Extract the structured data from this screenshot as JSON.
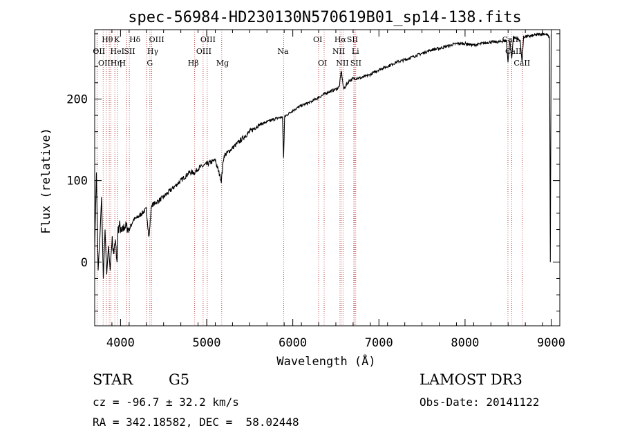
{
  "colors": {
    "spectrum": "#000000",
    "lines": "#b22222",
    "background": "#ffffff"
  },
  "chart_data": {
    "type": "line",
    "title": "spec-56984-HD230130N570619B01_sp14-138.fits",
    "xlabel": "Wavelength (Å)",
    "ylabel": "Flux (relative)",
    "xlim": [
      3700,
      9100
    ],
    "ylim": [
      -78,
      285
    ],
    "xticks": [
      4000,
      5000,
      6000,
      7000,
      8000,
      9000
    ],
    "yticks": [
      0,
      100,
      200
    ],
    "series": [
      {
        "name": "flux",
        "x": [
          3700,
          3720,
          3740,
          3760,
          3780,
          3800,
          3820,
          3840,
          3860,
          3880,
          3900,
          3920,
          3940,
          3960,
          3970,
          3990,
          4010,
          4050,
          4100,
          4150,
          4200,
          4250,
          4300,
          4330,
          4360,
          4400,
          4500,
          4600,
          4700,
          4800,
          4860,
          4900,
          5000,
          5100,
          5170,
          5200,
          5300,
          5400,
          5500,
          5600,
          5700,
          5800,
          5880,
          5893,
          5905,
          5950,
          6000,
          6100,
          6200,
          6300,
          6400,
          6500,
          6540,
          6563,
          6590,
          6650,
          6700,
          6800,
          6900,
          7000,
          7100,
          7200,
          7300,
          7400,
          7500,
          7600,
          7700,
          7800,
          7900,
          8000,
          8100,
          8200,
          8300,
          8400,
          8480,
          8498,
          8520,
          8542,
          8560,
          8600,
          8640,
          8662,
          8680,
          8750,
          8800,
          8850,
          8900,
          8950,
          8980,
          8990,
          9000
        ],
        "values": [
          15,
          110,
          -10,
          30,
          80,
          -20,
          40,
          -15,
          20,
          -10,
          30,
          10,
          25,
          0,
          40,
          45,
          35,
          45,
          40,
          52,
          55,
          60,
          65,
          30,
          70,
          72,
          80,
          90,
          100,
          110,
          110,
          115,
          120,
          125,
          100,
          130,
          140,
          150,
          160,
          168,
          172,
          176,
          178,
          128,
          178,
          182,
          186,
          192,
          196,
          202,
          208,
          212,
          215,
          235,
          212,
          222,
          225,
          226,
          230,
          236,
          240,
          245,
          248,
          252,
          256,
          260,
          262,
          265,
          268,
          268,
          266,
          268,
          270,
          270,
          272,
          245,
          272,
          250,
          276,
          274,
          272,
          245,
          276,
          277,
          278,
          279,
          280,
          279,
          275,
          0,
          280
        ]
      }
    ],
    "lines": [
      {
        "label": "Hθ",
        "wave": 3798,
        "row": 0,
        "dx": -2
      },
      {
        "label": "K",
        "wave": 3934,
        "row": 0,
        "dx": -1
      },
      {
        "label": "Hδ",
        "wave": 4102,
        "row": 0,
        "dx": 0
      },
      {
        "label": "OII",
        "wave": 3727,
        "row": 1,
        "dx": -6
      },
      {
        "label": "HeI",
        "wave": 3889,
        "row": 1,
        "dx": -1
      },
      {
        "label": "SII",
        "wave": 4072,
        "row": 1,
        "dx": -4
      },
      {
        "label": "OIII",
        "wave": 3869,
        "row": 2,
        "dx": -16
      },
      {
        "label": "Hη",
        "wave": 3835,
        "row": 2,
        "dx": 6
      },
      {
        "label": "H",
        "wave": 3969,
        "row": 2,
        "dx": 2
      },
      {
        "label": "OIII",
        "wave": 4363,
        "row": 0,
        "dx": -4
      },
      {
        "label": "Hγ",
        "wave": 4341,
        "row": 1,
        "dx": -4
      },
      {
        "label": "G",
        "wave": 4305,
        "row": 2,
        "dx": 0
      },
      {
        "label": "OIII",
        "wave": 5007,
        "row": 0,
        "dx": -10
      },
      {
        "label": "OIII",
        "wave": 4959,
        "row": 1,
        "dx": -10
      },
      {
        "label": "Hβ",
        "wave": 4861,
        "row": 2,
        "dx": -10
      },
      {
        "label": "Mg",
        "wave": 5175,
        "row": 2,
        "dx": -8
      },
      {
        "label": "Na",
        "wave": 5893,
        "row": 1,
        "dx": -9
      },
      {
        "label": "OI",
        "wave": 6300,
        "row": 0,
        "dx": -8
      },
      {
        "label": "OI",
        "wave": 6364,
        "row": 2,
        "dx": -9
      },
      {
        "label": "Hα",
        "wave": 6563,
        "row": 0,
        "dx": -10
      },
      {
        "label": "SII",
        "wave": 6716,
        "row": 0,
        "dx": -11
      },
      {
        "label": "NII",
        "wave": 6548,
        "row": 1,
        "dx": -11
      },
      {
        "label": "Li",
        "wave": 6708,
        "row": 1,
        "dx": -3
      },
      {
        "label": "NII",
        "wave": 6583,
        "row": 2,
        "dx": -10
      },
      {
        "label": "SII",
        "wave": 6731,
        "row": 2,
        "dx": -8
      },
      {
        "label": "CaII",
        "wave": 8542,
        "row": 0,
        "dx": -14
      },
      {
        "label": "CaII",
        "wave": 8498,
        "row": 1,
        "dx": -4
      },
      {
        "label": "CaII",
        "wave": 8662,
        "row": 2,
        "dx": -12
      }
    ]
  },
  "info": {
    "object_class": "STAR",
    "subclass": "G5",
    "survey": "LAMOST DR3",
    "redshift": "cz = -96.7 ± 32.2 km/s",
    "obs_date": "Obs-Date: 20141122",
    "coords": "RA = 342.18582, DEC =  58.02448"
  }
}
